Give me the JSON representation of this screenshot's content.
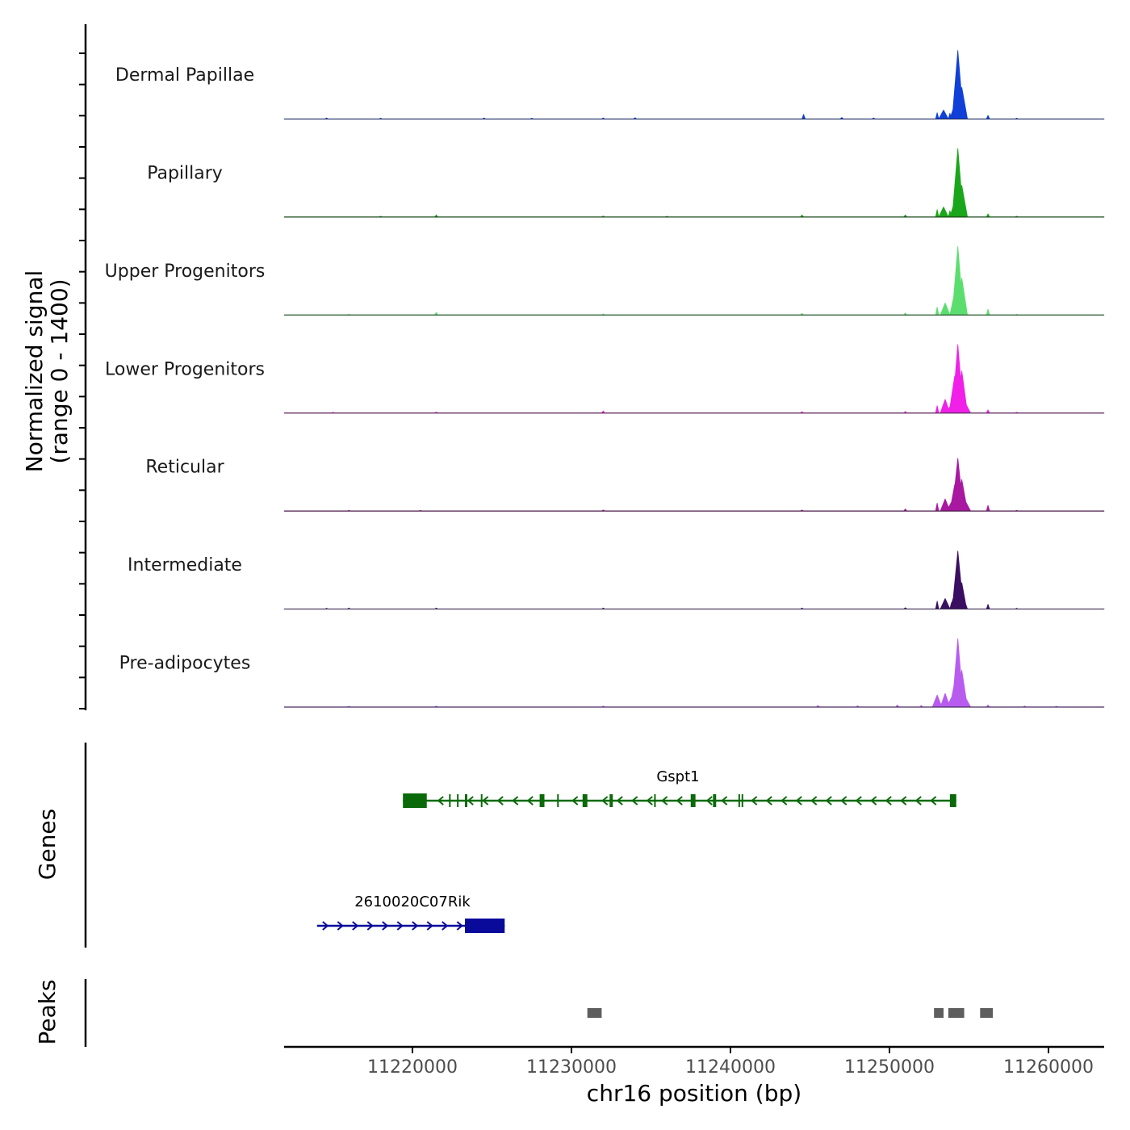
{
  "chart_data": {
    "type": "area",
    "title": "",
    "chromosome": "chr16",
    "xlabel": "chr16 position (bp)",
    "xlim": [
      11212000,
      11264000
    ],
    "x_ticks": [
      11220000,
      11230000,
      11240000,
      11250000,
      11260000
    ],
    "x_tick_labels": [
      "11220000",
      "11230000",
      "11240000",
      "11250000",
      "11260000"
    ],
    "coverage_panel": {
      "ylabel_line1": "Normalized signal",
      "ylabel_line2": "(range 0 - 1400)",
      "yrange": [
        0,
        1400
      ]
    },
    "tracks": [
      {
        "name": "Dermal Papillae",
        "color": "#1040d8",
        "baseline_color": "#1a2a60",
        "points": [
          [
            11214600,
            20
          ],
          [
            11218000,
            15
          ],
          [
            11224500,
            20
          ],
          [
            11227500,
            15
          ],
          [
            11232000,
            20
          ],
          [
            11234000,
            25
          ],
          [
            11244600,
            90
          ],
          [
            11247000,
            30
          ],
          [
            11249000,
            20
          ],
          [
            11253000,
            120
          ],
          [
            11253400,
            170
          ],
          [
            11253800,
            110
          ],
          [
            11254100,
            280
          ],
          [
            11254300,
            1300
          ],
          [
            11254550,
            600
          ],
          [
            11254800,
            150
          ],
          [
            11256200,
            70
          ],
          [
            11258000,
            15
          ]
        ]
      },
      {
        "name": "Papillary",
        "color": "#1aa61a",
        "baseline_color": "#1a4a1a",
        "points": [
          [
            11218000,
            15
          ],
          [
            11221500,
            40
          ],
          [
            11232000,
            20
          ],
          [
            11236000,
            15
          ],
          [
            11244500,
            40
          ],
          [
            11251000,
            40
          ],
          [
            11253000,
            140
          ],
          [
            11253400,
            190
          ],
          [
            11253800,
            120
          ],
          [
            11254100,
            300
          ],
          [
            11254300,
            1300
          ],
          [
            11254550,
            600
          ],
          [
            11254800,
            130
          ],
          [
            11256200,
            60
          ],
          [
            11258000,
            15
          ]
        ]
      },
      {
        "name": "Upper Progenitors",
        "color": "#5cde6e",
        "baseline_color": "#2a5a30",
        "points": [
          [
            11216000,
            15
          ],
          [
            11221500,
            50
          ],
          [
            11232000,
            20
          ],
          [
            11244500,
            30
          ],
          [
            11251000,
            40
          ],
          [
            11253000,
            150
          ],
          [
            11253500,
            230
          ],
          [
            11253900,
            140
          ],
          [
            11254100,
            430
          ],
          [
            11254300,
            1300
          ],
          [
            11254550,
            700
          ],
          [
            11254800,
            150
          ],
          [
            11256200,
            110
          ],
          [
            11258000,
            15
          ]
        ]
      },
      {
        "name": "Lower Progenitors",
        "color": "#f020e8",
        "baseline_color": "#5a2a5a",
        "points": [
          [
            11215000,
            15
          ],
          [
            11221500,
            20
          ],
          [
            11232000,
            40
          ],
          [
            11244500,
            25
          ],
          [
            11251000,
            30
          ],
          [
            11253000,
            140
          ],
          [
            11253500,
            260
          ],
          [
            11253900,
            180
          ],
          [
            11254100,
            700
          ],
          [
            11254300,
            1300
          ],
          [
            11254550,
            800
          ],
          [
            11254800,
            170
          ],
          [
            11256200,
            60
          ],
          [
            11258000,
            15
          ]
        ]
      },
      {
        "name": "Reticular",
        "color": "#a818a0",
        "baseline_color": "#4a1a48",
        "points": [
          [
            11216000,
            15
          ],
          [
            11220500,
            15
          ],
          [
            11232000,
            20
          ],
          [
            11244500,
            20
          ],
          [
            11251000,
            40
          ],
          [
            11253000,
            150
          ],
          [
            11253500,
            230
          ],
          [
            11253900,
            170
          ],
          [
            11254100,
            500
          ],
          [
            11254300,
            1000
          ],
          [
            11254550,
            600
          ],
          [
            11254800,
            170
          ],
          [
            11256200,
            110
          ],
          [
            11258000,
            15
          ]
        ]
      },
      {
        "name": "Intermediate",
        "color": "#3a0e60",
        "baseline_color": "#3a2a50",
        "points": [
          [
            11214600,
            15
          ],
          [
            11216000,
            20
          ],
          [
            11221500,
            20
          ],
          [
            11232000,
            20
          ],
          [
            11244500,
            20
          ],
          [
            11251000,
            25
          ],
          [
            11253000,
            150
          ],
          [
            11253500,
            200
          ],
          [
            11253900,
            120
          ],
          [
            11254100,
            300
          ],
          [
            11254300,
            1100
          ],
          [
            11254550,
            500
          ],
          [
            11254800,
            90
          ],
          [
            11256200,
            90
          ],
          [
            11258000,
            15
          ]
        ]
      },
      {
        "name": "Pre-adipocytes",
        "color": "#b85cf0",
        "baseline_color": "#4a2a60",
        "points": [
          [
            11216000,
            15
          ],
          [
            11221500,
            20
          ],
          [
            11232000,
            20
          ],
          [
            11245500,
            30
          ],
          [
            11248000,
            25
          ],
          [
            11250500,
            40
          ],
          [
            11252000,
            30
          ],
          [
            11253000,
            230
          ],
          [
            11253500,
            260
          ],
          [
            11253900,
            180
          ],
          [
            11254100,
            480
          ],
          [
            11254300,
            1300
          ],
          [
            11254550,
            700
          ],
          [
            11254800,
            170
          ],
          [
            11256200,
            40
          ],
          [
            11258500,
            20
          ],
          [
            11260500,
            15
          ]
        ]
      }
    ],
    "genes_panel": {
      "ylabel": "Genes",
      "genes": [
        {
          "name": "Gspt1",
          "strand": "-",
          "color": "#0a6a0a",
          "start": 11219400,
          "end": 11254200,
          "exons": [
            [
              11219400,
              11220900
            ],
            [
              11222300,
              11222400
            ],
            [
              11222800,
              11222900
            ],
            [
              11223300,
              11223450
            ],
            [
              11224300,
              11224400
            ],
            [
              11228000,
              11228300
            ],
            [
              11229100,
              11229200
            ],
            [
              11230700,
              11231000
            ],
            [
              11232400,
              11232600
            ],
            [
              11235200,
              11235300
            ],
            [
              11237500,
              11237800
            ],
            [
              11238900,
              11239100
            ],
            [
              11240500,
              11240550
            ],
            [
              11240700,
              11240750
            ],
            [
              11253800,
              11254200
            ]
          ]
        },
        {
          "name": "2610020C07Rik",
          "strand": "+",
          "color": "#0a0a9a",
          "start": 11214000,
          "end": 11225800,
          "exons": [
            [
              11223300,
              11225800
            ]
          ]
        }
      ]
    },
    "peaks_panel": {
      "ylabel": "Peaks",
      "color": "#5e5e5e",
      "peaks": [
        [
          11231000,
          11231900
        ],
        [
          11252800,
          11253400
        ],
        [
          11253700,
          11254700
        ],
        [
          11255700,
          11256500
        ]
      ]
    }
  }
}
